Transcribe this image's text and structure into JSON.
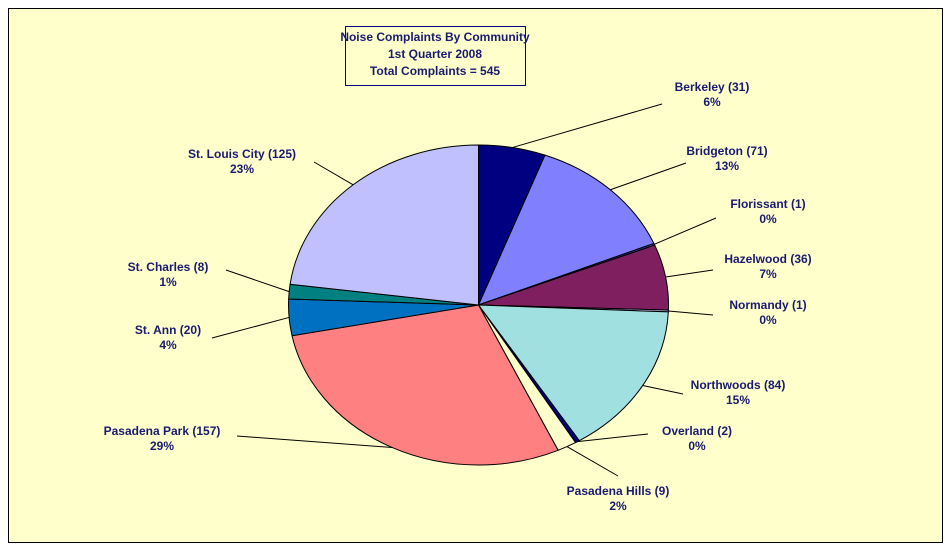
{
  "chart_data": {
    "type": "pie",
    "title": [
      "Noise Complaints By Community",
      "1st Quarter 2008",
      "Total Complaints = 545"
    ],
    "categories": [
      "Berkeley (31)",
      "Bridgeton (71)",
      "Florissant (1)",
      "Hazelwood (36)",
      "Normandy (1)",
      "Northwoods (84)",
      "Overland (2)",
      "Pasadena Hills (9)",
      "Pasadena Park (157)",
      "St. Ann (20)",
      "St. Charles (8)",
      "St. Louis City (125)"
    ],
    "values": [
      31,
      71,
      1,
      36,
      1,
      84,
      2,
      9,
      157,
      20,
      8,
      125
    ],
    "percent_labels": [
      "6%",
      "13%",
      "0%",
      "7%",
      "0%",
      "15%",
      "0%",
      "2%",
      "29%",
      "4%",
      "1%",
      "23%"
    ],
    "colors": [
      "#000080",
      "#8080ff",
      "#333399",
      "#7f1f5f",
      "#c0c0ff",
      "#a0e0e0",
      "#000080",
      "#ffffcc",
      "#ff8080",
      "#0070c0",
      "#008080",
      "#c0c0ff"
    ]
  }
}
